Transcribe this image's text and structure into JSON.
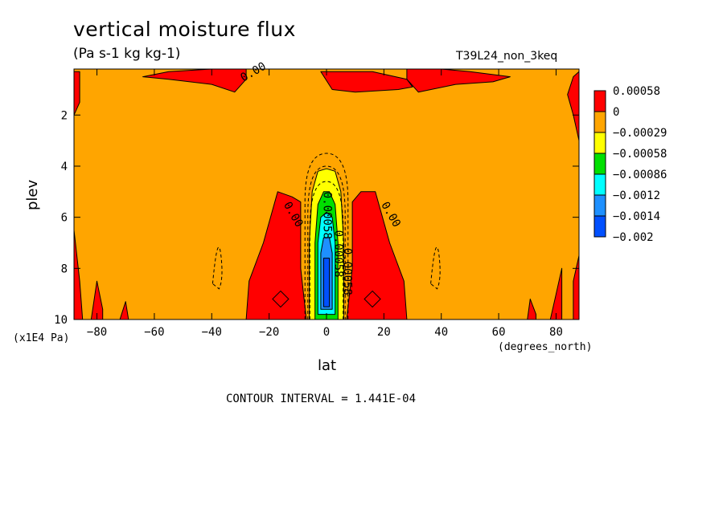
{
  "header": {
    "title": "vertical moisture flux",
    "units": "(Pa s-1 kg kg-1)",
    "run_id": "T39L24_non_3keq"
  },
  "footer": {
    "contour_interval": "CONTOUR INTERVAL = 1.441E-04"
  },
  "chart_data": {
    "type": "heatmap",
    "title": "vertical moisture flux",
    "subtitle": "(Pa s-1 kg kg-1)",
    "xlabel": "lat",
    "ylabel": "plev",
    "x_unit": "(degrees_north)",
    "y_unit": "(x1E4 Pa)",
    "xlim": [
      -88,
      88
    ],
    "ylim": [
      10,
      0.2
    ],
    "x_ticks": [
      -80,
      -60,
      -40,
      -20,
      0,
      20,
      40,
      60,
      80
    ],
    "x_tick_labels": [
      "−80",
      "−60",
      "−40",
      "−20",
      "0",
      "20",
      "40",
      "60",
      "80"
    ],
    "y_ticks": [
      2,
      4,
      6,
      8,
      10
    ],
    "y_tick_labels": [
      "2",
      "4",
      "6",
      "8",
      "10"
    ],
    "legend": {
      "placement": "right",
      "levels": [
        "0.00058",
        "0",
        "−0.00029",
        "−0.00058",
        "−0.00086",
        "−0.0012",
        "−0.0014",
        "−0.002"
      ],
      "colors": [
        "#ff0000",
        "#ffa500",
        "#ffff00",
        "#00e000",
        "#00ffff",
        "#1e90ff",
        "#0050ff"
      ]
    },
    "background_color": "#ffa500",
    "regions": [
      {
        "name": "polar-north-top",
        "color": "#ff0000",
        "points": [
          [
            16,
            0.3
          ],
          [
            28,
            0.6
          ],
          [
            30,
            0.9
          ],
          [
            25,
            1.0
          ],
          [
            10,
            1.1
          ],
          [
            2,
            1.0
          ],
          [
            -2,
            0.3
          ]
        ]
      },
      {
        "name": "top-nh-band",
        "color": "#ff0000",
        "points": [
          [
            28,
            0.1
          ],
          [
            40,
            0.2
          ],
          [
            50,
            0.3
          ],
          [
            64,
            0.5
          ],
          [
            58,
            0.7
          ],
          [
            45,
            0.8
          ],
          [
            32,
            1.1
          ],
          [
            28,
            0.6
          ]
        ]
      },
      {
        "name": "top-sh-band",
        "color": "#ff0000",
        "points": [
          [
            -28,
            0.1
          ],
          [
            -40,
            0.2
          ],
          [
            -55,
            0.3
          ],
          [
            -64,
            0.5
          ],
          [
            -55,
            0.6
          ],
          [
            -40,
            0.8
          ],
          [
            -32,
            1.1
          ],
          [
            -28,
            0.6
          ]
        ]
      },
      {
        "name": "sh-midlat-plume",
        "color": "#ff0000",
        "points": [
          [
            -28,
            10
          ],
          [
            -27,
            8.5
          ],
          [
            -22,
            7.0
          ],
          [
            -17,
            5.0
          ],
          [
            -12,
            5.2
          ],
          [
            -9,
            5.4
          ],
          [
            -9,
            8.0
          ],
          [
            -7,
            10
          ]
        ]
      },
      {
        "name": "nh-midlat-plume",
        "color": "#ff0000",
        "points": [
          [
            7,
            10
          ],
          [
            9,
            8.0
          ],
          [
            9,
            5.4
          ],
          [
            12,
            5.0
          ],
          [
            17,
            5.0
          ],
          [
            22,
            7.0
          ],
          [
            27,
            8.5
          ],
          [
            28,
            10
          ]
        ]
      },
      {
        "name": "north-pole-right",
        "color": "#ff0000",
        "points": [
          [
            86,
            0.5
          ],
          [
            88,
            0.3
          ],
          [
            88,
            3.0
          ],
          [
            86,
            2.0
          ],
          [
            84,
            1.2
          ]
        ]
      },
      {
        "name": "north-pole-low",
        "color": "#ff0000",
        "points": [
          [
            86,
            10
          ],
          [
            86,
            8.5
          ],
          [
            88,
            7.5
          ],
          [
            88,
            10
          ]
        ]
      },
      {
        "name": "nh-high-lat-spot",
        "color": "#ff0000",
        "points": [
          [
            70,
            10
          ],
          [
            71,
            9.2
          ],
          [
            73,
            9.8
          ],
          [
            73,
            10
          ]
        ]
      },
      {
        "name": "nh-polar-low",
        "color": "#ff0000",
        "points": [
          [
            78,
            10
          ],
          [
            80,
            9.0
          ],
          [
            82,
            8.0
          ],
          [
            82,
            10
          ]
        ]
      },
      {
        "name": "sh-polar-low-a",
        "color": "#ff0000",
        "points": [
          [
            -82,
            10
          ],
          [
            -80,
            8.5
          ],
          [
            -78,
            9.6
          ],
          [
            -78,
            10
          ]
        ]
      },
      {
        "name": "sh-polar-low-b",
        "color": "#ff0000",
        "points": [
          [
            -72,
            10
          ],
          [
            -70,
            9.3
          ],
          [
            -69,
            10
          ]
        ]
      },
      {
        "name": "south-pole-left",
        "color": "#ff0000",
        "points": [
          [
            -88,
            10
          ],
          [
            -88,
            6.5
          ],
          [
            -86,
            8.5
          ],
          [
            -85,
            10
          ]
        ]
      },
      {
        "name": "south-pole-top-left",
        "color": "#ff0000",
        "points": [
          [
            -88,
            0.3
          ],
          [
            -86,
            0.3
          ],
          [
            -86,
            1.5
          ],
          [
            -88,
            2.0
          ]
        ]
      },
      {
        "name": "equatorial-yellow",
        "color": "#ffff00",
        "points": [
          [
            -6,
            10
          ],
          [
            -6,
            7.0
          ],
          [
            -5,
            5.0
          ],
          [
            -3,
            4.2
          ],
          [
            0,
            4.1
          ],
          [
            3,
            4.2
          ],
          [
            5,
            5.0
          ],
          [
            6,
            7.0
          ],
          [
            6,
            10
          ]
        ]
      },
      {
        "name": "equatorial-green",
        "color": "#00e000",
        "points": [
          [
            -4,
            10
          ],
          [
            -4,
            7.0
          ],
          [
            -3,
            5.5
          ],
          [
            -1,
            5.0
          ],
          [
            1,
            5.0
          ],
          [
            3,
            5.5
          ],
          [
            4,
            7.0
          ],
          [
            4,
            10
          ]
        ]
      },
      {
        "name": "equatorial-cyan",
        "color": "#00ffff",
        "points": [
          [
            -3,
            9.8
          ],
          [
            -3,
            7.0
          ],
          [
            -2,
            6.0
          ],
          [
            0,
            5.8
          ],
          [
            2,
            6.0
          ],
          [
            3,
            7.0
          ],
          [
            3,
            9.8
          ]
        ]
      },
      {
        "name": "equatorial-lightblue",
        "color": "#1e90ff",
        "points": [
          [
            -2,
            9.6
          ],
          [
            -2,
            7.4
          ],
          [
            -1,
            6.8
          ],
          [
            1,
            6.8
          ],
          [
            2,
            7.4
          ],
          [
            2,
            9.6
          ]
        ]
      },
      {
        "name": "equatorial-blue",
        "color": "#0050ff",
        "points": [
          [
            -1,
            9.5
          ],
          [
            -1,
            7.6
          ],
          [
            1,
            7.6
          ],
          [
            1,
            9.5
          ]
        ]
      }
    ],
    "contour_labels": [
      {
        "text": "0.00",
        "x": -29,
        "y": 0.7,
        "angle": -30
      },
      {
        "text": "0.00",
        "x": -15,
        "y": 5.5,
        "angle": 60
      },
      {
        "text": "0.00",
        "x": 19,
        "y": 5.5,
        "angle": 60
      },
      {
        "text": "0.00058",
        "x": -1,
        "y": 5.0,
        "angle": 90
      },
      {
        "text": "0.00058",
        "x": 3,
        "y": 6.5,
        "angle": 90
      },
      {
        "text": "0.00058",
        "x": 6,
        "y": 7.2,
        "angle": 90
      }
    ]
  }
}
